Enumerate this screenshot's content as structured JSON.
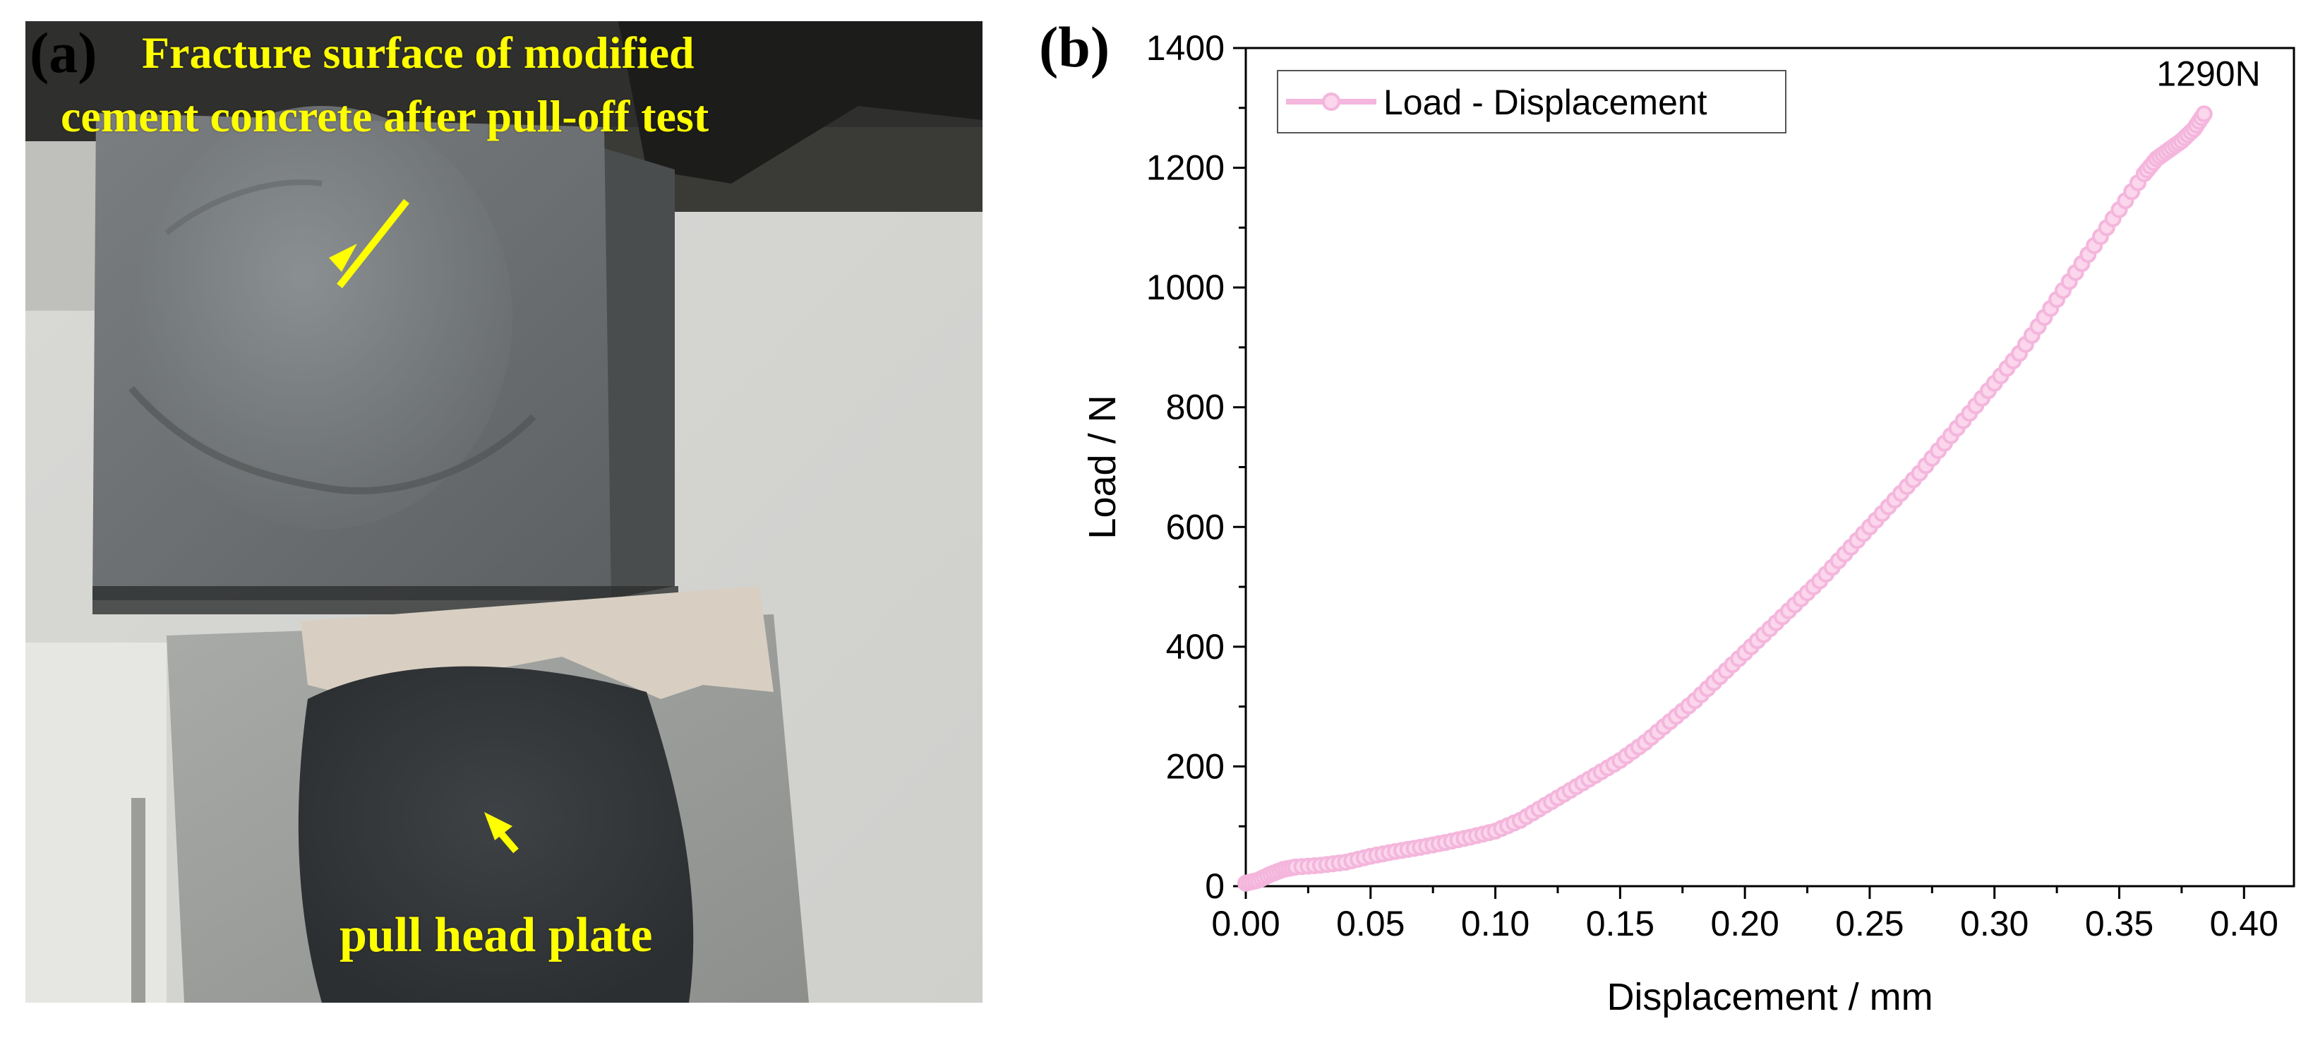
{
  "panel_a": {
    "letter": "(a)",
    "caption_line1": "Fracture surface of modified",
    "caption_line2": "cement concrete after pull-off test",
    "caption_bottom": "pull  head plate"
  },
  "panel_b": {
    "letter": "(b)",
    "peak_label": "1290N"
  },
  "colors": {
    "series": "#f4b6dc",
    "series_marker_fill": "#fbd6ec",
    "annotation_yellow": "#ffff00",
    "axis": "#000000"
  },
  "chart_data": {
    "type": "line",
    "xlabel": "Displacement / mm",
    "ylabel": "Load / N",
    "xlim": [
      0.0,
      0.42
    ],
    "ylim": [
      0,
      1400
    ],
    "xticks": [
      "0.00",
      "0.05",
      "0.10",
      "0.15",
      "0.20",
      "0.25",
      "0.30",
      "0.35",
      "0.40"
    ],
    "yticks": [
      "0",
      "200",
      "400",
      "600",
      "800",
      "1000",
      "1200",
      "1400"
    ],
    "grid": false,
    "legend_position": "top-left",
    "series": [
      {
        "name": "Load - Displacement",
        "marker": "circle",
        "x": [
          0.0,
          0.005,
          0.01,
          0.015,
          0.02,
          0.03,
          0.04,
          0.05,
          0.06,
          0.07,
          0.08,
          0.09,
          0.1,
          0.11,
          0.12,
          0.13,
          0.14,
          0.15,
          0.16,
          0.17,
          0.18,
          0.19,
          0.2,
          0.21,
          0.22,
          0.23,
          0.24,
          0.25,
          0.26,
          0.27,
          0.28,
          0.29,
          0.3,
          0.31,
          0.32,
          0.33,
          0.34,
          0.35,
          0.36,
          0.365,
          0.37,
          0.375,
          0.38,
          0.384
        ],
        "y": [
          5,
          10,
          20,
          28,
          32,
          35,
          40,
          50,
          58,
          65,
          73,
          82,
          92,
          110,
          135,
          160,
          185,
          210,
          240,
          275,
          310,
          350,
          390,
          430,
          470,
          510,
          555,
          600,
          645,
          690,
          740,
          790,
          840,
          890,
          950,
          1010,
          1070,
          1130,
          1190,
          1215,
          1230,
          1245,
          1265,
          1290
        ]
      }
    ]
  }
}
